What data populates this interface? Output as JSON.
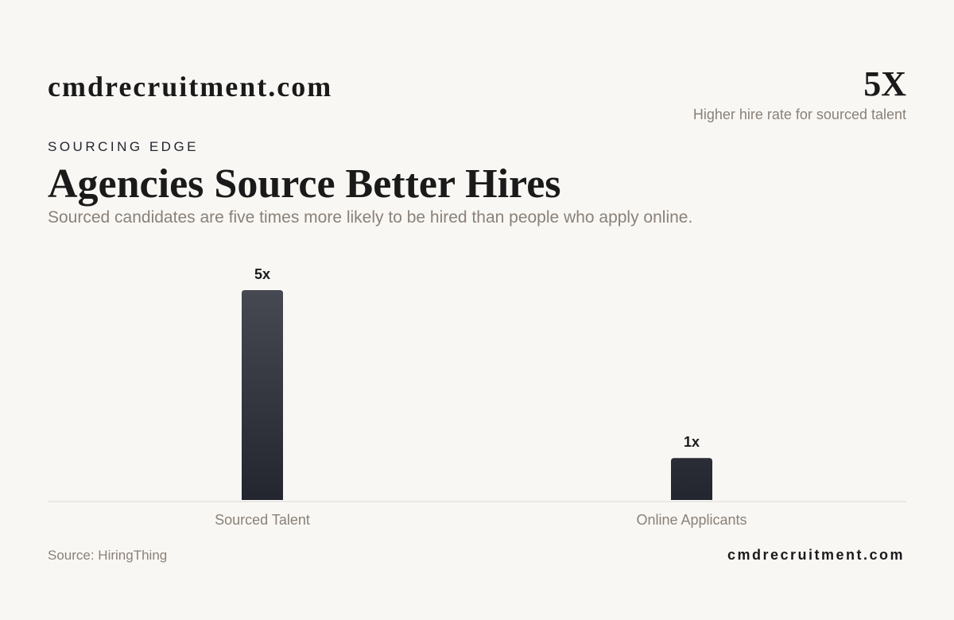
{
  "header": {
    "brand": "cmdrecruitment.com",
    "stat": "5X",
    "stat_caption": "Higher hire rate for sourced talent",
    "kicker": "SOURCING EDGE"
  },
  "chart_data": {
    "type": "bar",
    "title": "Agencies Source Better Hires",
    "subtitle": "Sourced candidates are five times more likely to be hired than people who apply online.",
    "categories": [
      "Sourced Talent",
      "Online Applicants"
    ],
    "values": [
      5,
      1
    ],
    "value_labels": [
      "5x",
      "1x"
    ],
    "color": "#23262f",
    "ylim": [
      0,
      5
    ]
  },
  "footer": {
    "source": "Source: HiringThing",
    "brand": "cmdrecruitment.com"
  }
}
